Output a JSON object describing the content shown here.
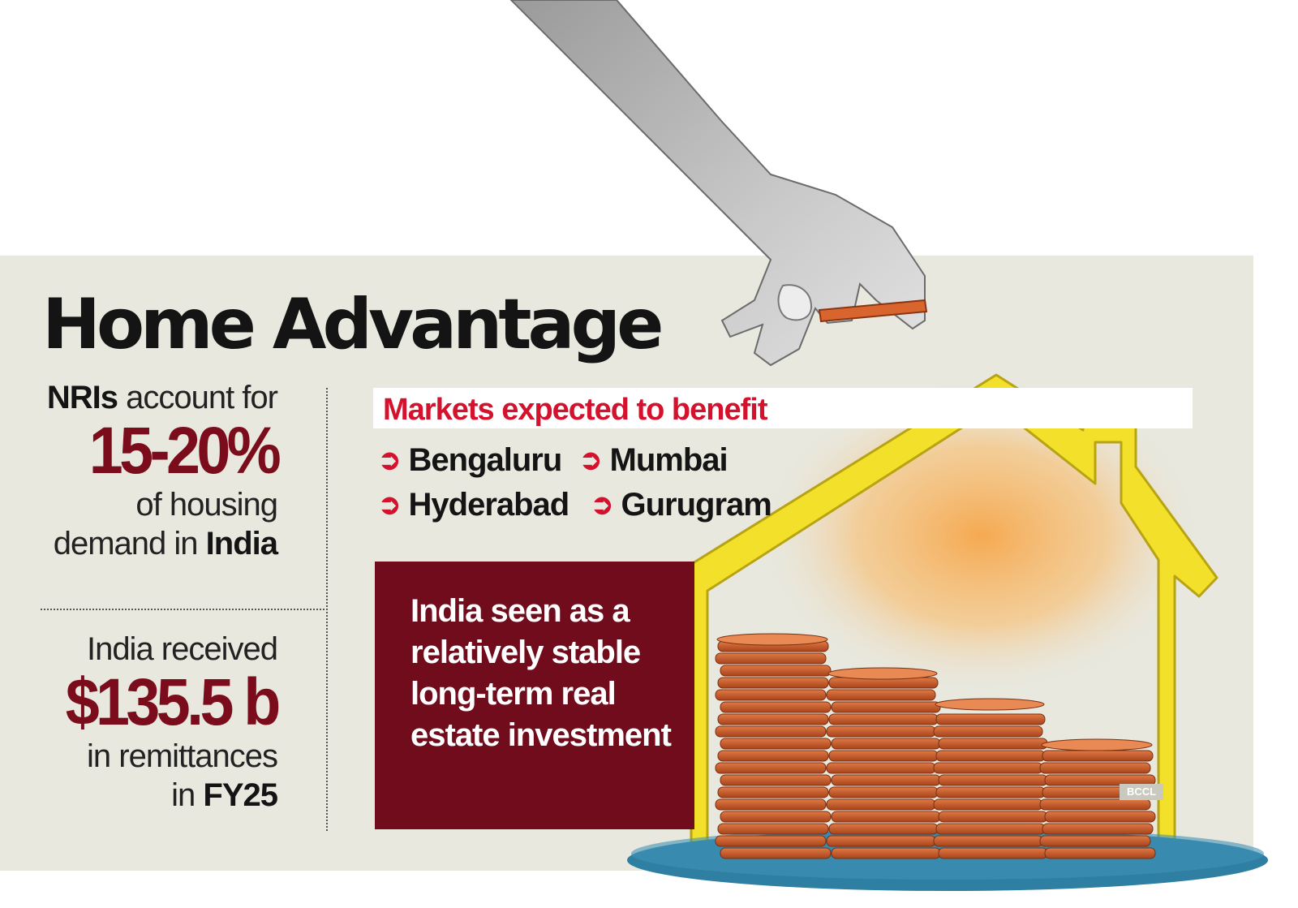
{
  "title": "Home Advantage",
  "stats": [
    {
      "pre_bold": "NRIs",
      "pre_rest": " account for",
      "highlight": "15-20%",
      "post_line1": "of housing",
      "post_line2_pre": "demand in ",
      "post_line2_bold": "India"
    },
    {
      "pre_line": "India received",
      "highlight": "$135.5 b",
      "post_line1": "in remittances",
      "post_line2_pre": "in ",
      "post_line2_bold": "FY25"
    }
  ],
  "markets": {
    "heading": "Markets expected to benefit",
    "arrow_icon": "➲",
    "cities": [
      "Bengaluru",
      "Mumbai",
      "Hyderabad",
      "Gurugram"
    ]
  },
  "callout": "India seen as a relatively stable long-term real estate investment",
  "credit": "BCCL",
  "colors": {
    "background": "#e8e8df",
    "headline_red": "#d4122e",
    "stat_maroon": "#7a0c1c",
    "callout_box": "#700c1b",
    "house_frame": "#f2e02a",
    "coin": "#c8612c"
  }
}
